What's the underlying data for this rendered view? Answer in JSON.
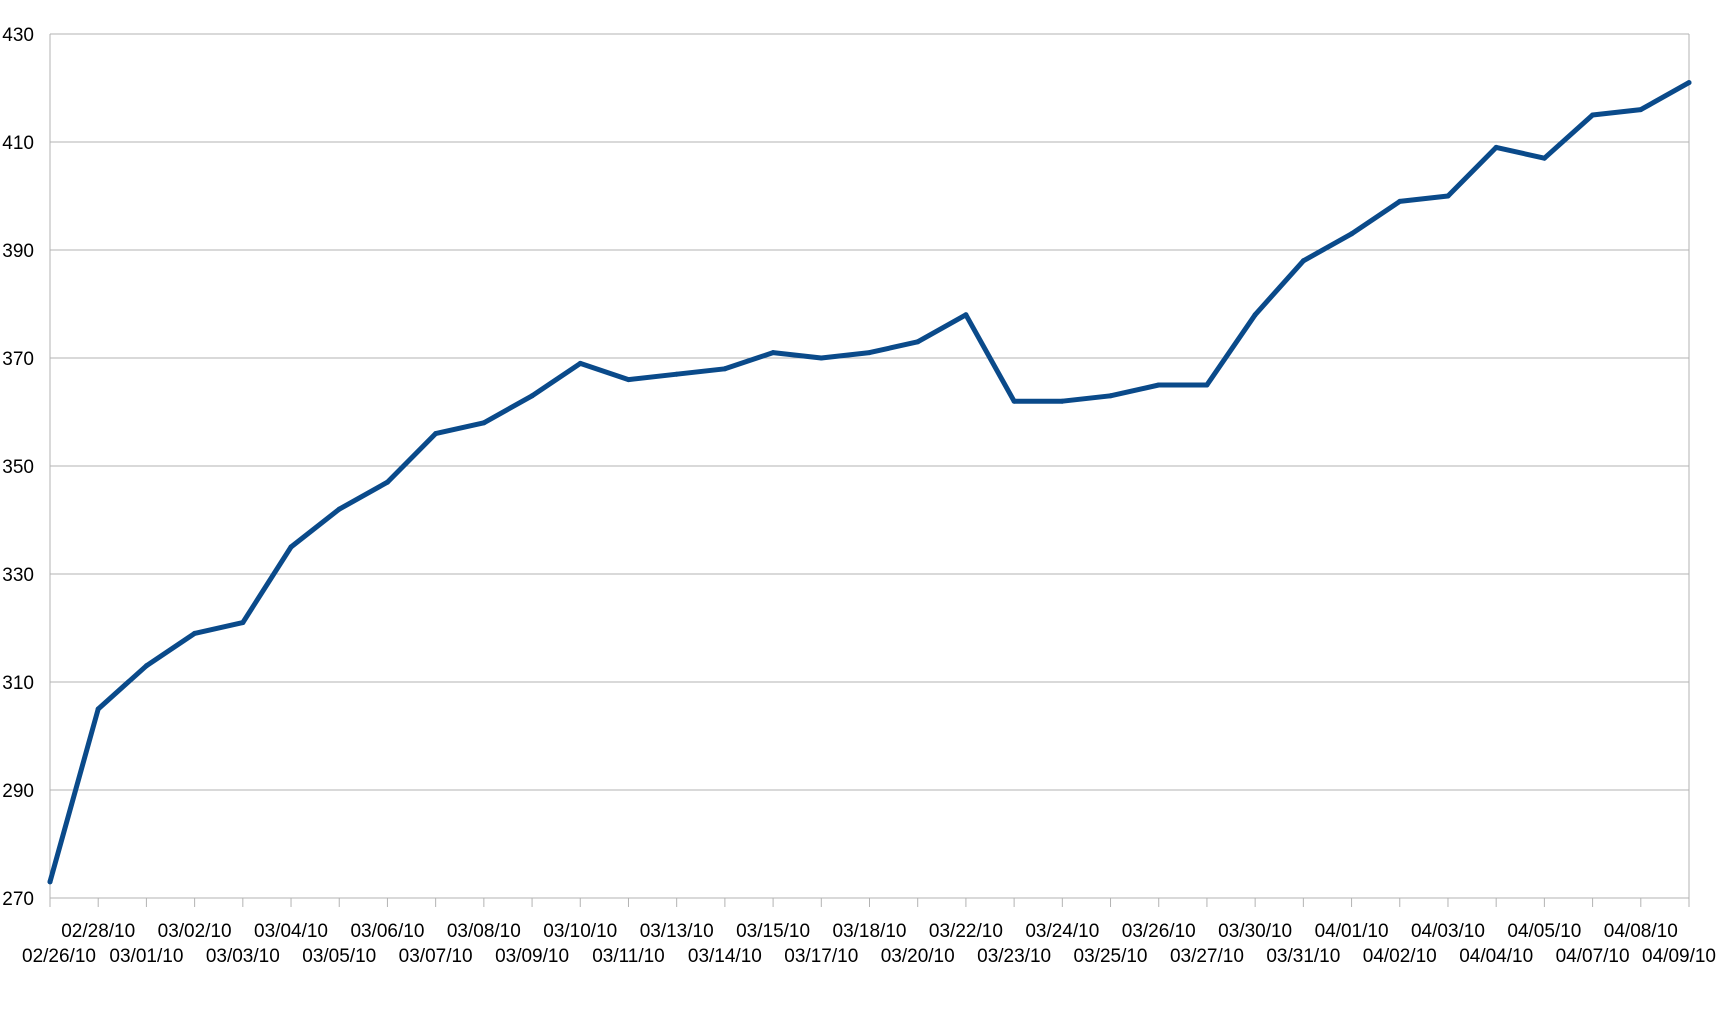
{
  "chart_data": {
    "type": "line",
    "title": "",
    "xlabel": "",
    "ylabel": "",
    "ylim": [
      270,
      430
    ],
    "yticks": [
      270,
      290,
      310,
      330,
      350,
      370,
      390,
      410,
      430
    ],
    "grid": true,
    "legend": "none",
    "series_color": "#0a4a8a",
    "categories": [
      "02/26/10",
      "02/28/10",
      "03/01/10",
      "03/02/10",
      "03/03/10",
      "03/04/10",
      "03/05/10",
      "03/06/10",
      "03/07/10",
      "03/08/10",
      "03/09/10",
      "03/10/10",
      "03/11/10",
      "03/13/10",
      "03/14/10",
      "03/15/10",
      "03/17/10",
      "03/18/10",
      "03/20/10",
      "03/22/10",
      "03/23/10",
      "03/24/10",
      "03/25/10",
      "03/26/10",
      "03/27/10",
      "03/30/10",
      "03/31/10",
      "04/01/10",
      "04/02/10",
      "04/03/10",
      "04/04/10",
      "04/05/10",
      "04/07/10",
      "04/08/10",
      "04/09/10"
    ],
    "series": [
      {
        "values": [
          273,
          305,
          313,
          319,
          321,
          335,
          342,
          347,
          356,
          358,
          363,
          369,
          366,
          367,
          368,
          371,
          370,
          371,
          373,
          378,
          362,
          362,
          363,
          365,
          365,
          378,
          388,
          393,
          399,
          400,
          409,
          407,
          415,
          416,
          421
        ]
      }
    ]
  }
}
